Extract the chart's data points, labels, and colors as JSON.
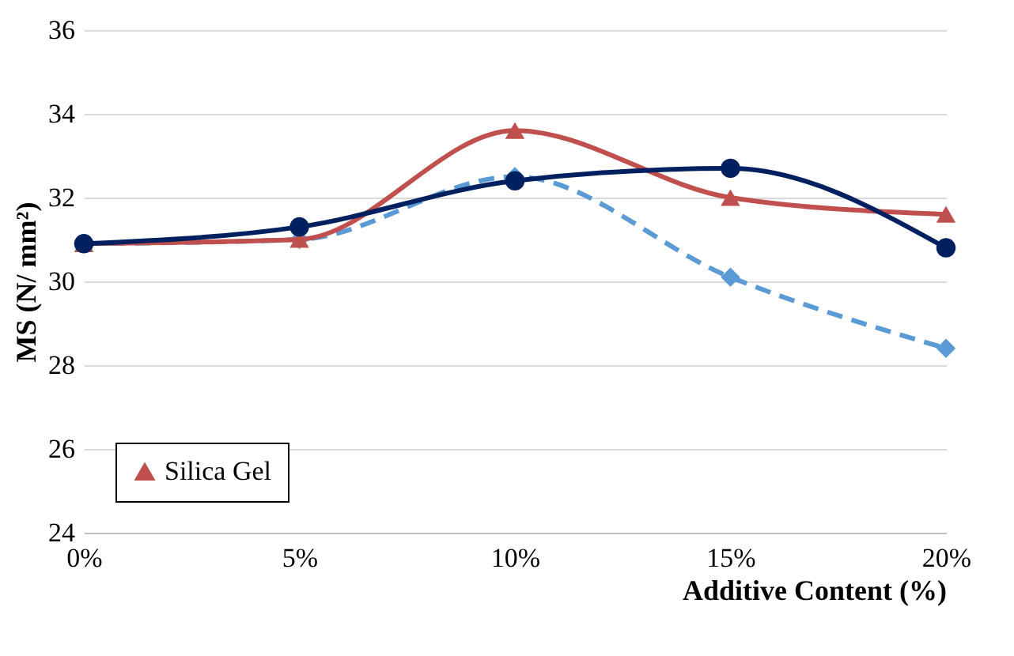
{
  "chart_data": {
    "type": "line",
    "xlabel": "Additive Content (%)",
    "ylabel": "MS (N/ mm²)",
    "categories": [
      "0%",
      "5%",
      "10%",
      "15%",
      "20%"
    ],
    "ylim": [
      24,
      36
    ],
    "yticks": [
      24,
      26,
      28,
      30,
      32,
      34,
      36
    ],
    "grid": "y",
    "legend": "bottom left",
    "series": [
      {
        "color": "#5b9bd5",
        "values": [
          30.9,
          31.0,
          32.5,
          30.1,
          28.4
        ],
        "marker": "diamond",
        "line_style": "dashed"
      },
      {
        "name": "Silica Gel",
        "color": "#c0504d",
        "values": [
          30.9,
          31.0,
          33.6,
          32.0,
          31.6
        ],
        "marker": "triangle",
        "line_style": "solid"
      },
      {
        "color": "#002060",
        "values": [
          30.9,
          31.3,
          32.4,
          32.7,
          30.8
        ],
        "marker": "circle",
        "line_style": "solid"
      }
    ]
  }
}
